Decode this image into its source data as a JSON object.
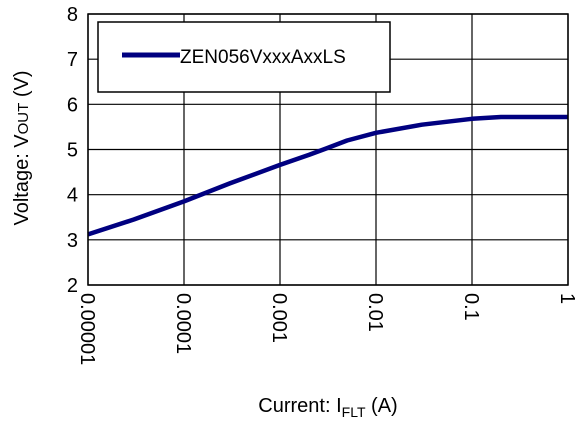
{
  "chart_data": {
    "type": "line",
    "x_scale": "log",
    "xlim": [
      1e-05,
      1
    ],
    "ylim": [
      2,
      8
    ],
    "grid": true,
    "legend_position": "top-left",
    "series_color": "#000080",
    "x_ticks": [
      {
        "value": 1e-05,
        "label": "0.00001"
      },
      {
        "value": 0.0001,
        "label": "0.0001"
      },
      {
        "value": 0.001,
        "label": "0.001"
      },
      {
        "value": 0.01,
        "label": "0.01"
      },
      {
        "value": 0.1,
        "label": "0.1"
      },
      {
        "value": 1,
        "label": "1"
      }
    ],
    "y_ticks": [
      {
        "value": 2,
        "label": "2"
      },
      {
        "value": 3,
        "label": "3"
      },
      {
        "value": 4,
        "label": "4"
      },
      {
        "value": 5,
        "label": "5"
      },
      {
        "value": 6,
        "label": "6"
      },
      {
        "value": 7,
        "label": "7"
      },
      {
        "value": 8,
        "label": "8"
      }
    ],
    "xlabel": {
      "main": "Current: I",
      "sub": "FLT",
      "unit": " (A)"
    },
    "ylabel": {
      "main": "Voltage: V",
      "sub": "OUT",
      "unit": " (V)"
    },
    "series": [
      {
        "name": "ZEN056VxxxAxxLS",
        "x": [
          1e-05,
          3e-05,
          0.0001,
          0.0003,
          0.001,
          0.002,
          0.003,
          0.005,
          0.01,
          0.03,
          0.1,
          0.2,
          0.5,
          1
        ],
        "y": [
          3.12,
          3.45,
          3.85,
          4.25,
          4.66,
          4.88,
          5.02,
          5.2,
          5.37,
          5.55,
          5.68,
          5.72,
          5.72,
          5.72
        ]
      }
    ]
  }
}
